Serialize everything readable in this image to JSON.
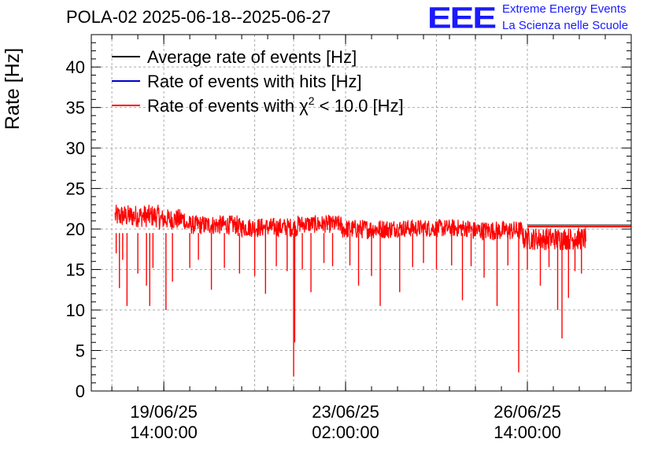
{
  "header": {
    "title": "POLA-02 2025-06-18--2025-06-27",
    "logo_text": "EEE",
    "logo_line1": "Extreme Energy Events",
    "logo_line2": "La Scienza nelle Scuole"
  },
  "chart_data": {
    "type": "line",
    "title": "POLA-02 2025-06-18--2025-06-27",
    "ylabel": "Rate [Hz]",
    "xlabel": "",
    "ylim": [
      0,
      44
    ],
    "yticks": [
      0,
      5,
      10,
      15,
      20,
      25,
      30,
      35,
      40
    ],
    "x_ticks": [
      {
        "line1": "19/06/25",
        "line2": "14:00:00"
      },
      {
        "line1": "23/06/25",
        "line2": "02:00:00"
      },
      {
        "line1": "26/06/25",
        "line2": "14:00:00"
      }
    ],
    "x_range": [
      "2025-06-18 04:30",
      "2025-06-28 14:00"
    ],
    "grid": true,
    "legend_position": "top-left",
    "series": [
      {
        "name": "Average rate of events [Hz]",
        "color": "#000000",
        "style": "constant",
        "value": 20.4,
        "x_start": "2025-06-26 14:00",
        "x_end": "2025-06-28 14:00"
      },
      {
        "name": "Rate of events with hits [Hz]",
        "color": "#0000cc",
        "style": "hidden-under-red",
        "values": []
      },
      {
        "name": "Rate of events with χ² < 10.0 [Hz]",
        "name_parts": [
          "Rate of events with χ",
          "2",
          " < 10.0 [Hz]"
        ],
        "color": "#ff0000",
        "x_start": "2025-06-18 15:30",
        "x_end": "2025-06-27 17:00",
        "segments": [
          {
            "from": "2025-06-18 15:30",
            "to": "2025-06-19 12:00",
            "level": 21.6,
            "spread": 1.4
          },
          {
            "from": "2025-06-19 12:00",
            "to": "2025-06-20 00:00",
            "level": 21.2,
            "spread": 1.3
          },
          {
            "from": "2025-06-20 00:00",
            "to": "2025-06-21 00:00",
            "level": 20.5,
            "spread": 1.2
          },
          {
            "from": "2025-06-21 00:00",
            "to": "2025-06-22 04:00",
            "level": 20.2,
            "spread": 1.2
          },
          {
            "from": "2025-06-22 04:00",
            "to": "2025-06-23 00:00",
            "level": 20.6,
            "spread": 1.1
          },
          {
            "from": "2025-06-23 00:00",
            "to": "2025-06-24 00:00",
            "level": 20.0,
            "spread": 1.2
          },
          {
            "from": "2025-06-24 00:00",
            "to": "2025-06-25 12:00",
            "level": 20.1,
            "spread": 1.1
          },
          {
            "from": "2025-06-25 12:00",
            "to": "2025-06-26 12:00",
            "level": 19.8,
            "spread": 1.2
          },
          {
            "from": "2025-06-26 12:00",
            "to": "2025-06-27 17:00",
            "level": 18.8,
            "spread": 1.4
          }
        ],
        "dips": [
          {
            "x": "2025-06-18 16:00",
            "y": 17.0
          },
          {
            "x": "2025-06-18 17:30",
            "y": 12.7
          },
          {
            "x": "2025-06-18 19:00",
            "y": 16.2
          },
          {
            "x": "2025-06-18 21:00",
            "y": 10.5
          },
          {
            "x": "2025-06-19 02:00",
            "y": 14.5
          },
          {
            "x": "2025-06-19 06:00",
            "y": 13.0
          },
          {
            "x": "2025-06-19 07:30",
            "y": 10.5
          },
          {
            "x": "2025-06-19 09:00",
            "y": 15.2
          },
          {
            "x": "2025-06-19 15:00",
            "y": 10.0
          },
          {
            "x": "2025-06-19 18:00",
            "y": 13.5
          },
          {
            "x": "2025-06-20 02:00",
            "y": 15.2
          },
          {
            "x": "2025-06-20 06:00",
            "y": 16.2
          },
          {
            "x": "2025-06-20 12:00",
            "y": 12.5
          },
          {
            "x": "2025-06-20 18:00",
            "y": 15.2
          },
          {
            "x": "2025-06-21 01:00",
            "y": 14.5
          },
          {
            "x": "2025-06-21 08:00",
            "y": 14.2
          },
          {
            "x": "2025-06-21 13:00",
            "y": 12.0
          },
          {
            "x": "2025-06-21 18:00",
            "y": 15.4
          },
          {
            "x": "2025-06-21 23:00",
            "y": 14.8
          },
          {
            "x": "2025-06-22 02:00",
            "y": 1.8
          },
          {
            "x": "2025-06-22 02:30",
            "y": 6.0
          },
          {
            "x": "2025-06-22 06:00",
            "y": 15.0
          },
          {
            "x": "2025-06-22 10:00",
            "y": 12.2
          },
          {
            "x": "2025-06-22 16:00",
            "y": 15.8
          },
          {
            "x": "2025-06-22 20:00",
            "y": 15.4
          },
          {
            "x": "2025-06-23 04:00",
            "y": 15.5
          },
          {
            "x": "2025-06-23 08:00",
            "y": 13.0
          },
          {
            "x": "2025-06-23 14:00",
            "y": 14.2
          },
          {
            "x": "2025-06-23 18:00",
            "y": 10.5
          },
          {
            "x": "2025-06-24 03:00",
            "y": 12.2
          },
          {
            "x": "2025-06-24 09:00",
            "y": 15.3
          },
          {
            "x": "2025-06-24 14:00",
            "y": 15.8
          },
          {
            "x": "2025-06-24 20:00",
            "y": 15.0
          },
          {
            "x": "2025-06-25 03:00",
            "y": 15.5
          },
          {
            "x": "2025-06-25 08:00",
            "y": 11.2
          },
          {
            "x": "2025-06-25 12:00",
            "y": 15.4
          },
          {
            "x": "2025-06-25 18:00",
            "y": 14.0
          },
          {
            "x": "2025-06-26 00:00",
            "y": 10.5
          },
          {
            "x": "2025-06-26 05:00",
            "y": 15.5
          },
          {
            "x": "2025-06-26 10:00",
            "y": 2.3
          },
          {
            "x": "2025-06-26 14:00",
            "y": 15.0
          },
          {
            "x": "2025-06-26 20:00",
            "y": 13.0
          },
          {
            "x": "2025-06-27 00:00",
            "y": 15.3
          },
          {
            "x": "2025-06-27 04:00",
            "y": 10.0
          },
          {
            "x": "2025-06-27 06:00",
            "y": 6.5
          },
          {
            "x": "2025-06-27 09:00",
            "y": 11.5
          },
          {
            "x": "2025-06-27 12:00",
            "y": 14.8
          },
          {
            "x": "2025-06-27 15:00",
            "y": 14.5
          }
        ]
      }
    ]
  }
}
